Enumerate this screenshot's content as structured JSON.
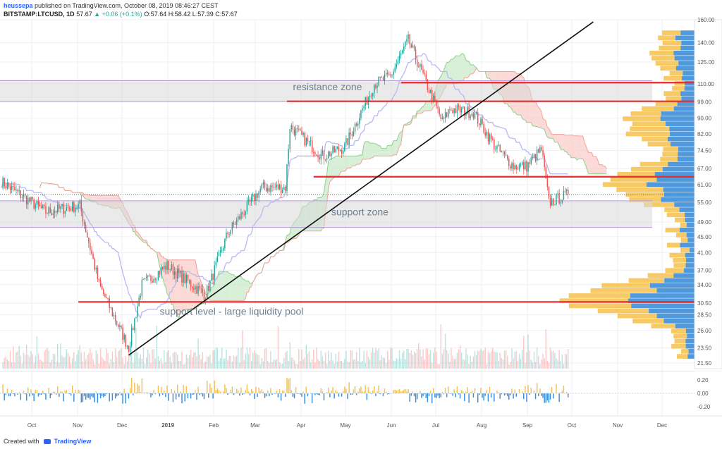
{
  "header": {
    "author": "heussepa",
    "published_text": "published on TradingView.com, October 08, 2019 08:46:27 CEST",
    "symbol": "BITSTAMP:LTCUSD, 1D",
    "last": "57.67",
    "change": "▲ +0.06 (+0.1%)",
    "ohlc": "O:57.64 H:58.42 L:57.39 C:57.67"
  },
  "footer": {
    "created_with": "Created with",
    "brand": "TradingView"
  },
  "colors": {
    "up": "#26a69a",
    "down": "#ef5350",
    "level_line": "#e52b2b",
    "resistance_zone": "#d9d9d9",
    "zone_border": "#b89ad6",
    "cloud_red": "#f9c9c4",
    "cloud_green": "#c6e8c5",
    "vp_yellow": "#f7c14a",
    "vp_blue": "#3d8ed8",
    "price_badge": "#2f9a8f"
  },
  "chart_data": {
    "type": "candlestick",
    "symbol": "BITSTAMP:LTCUSD",
    "interval": "1D",
    "y_ticks": [
      "160.00",
      "140.00",
      "125.00",
      "110.00",
      "99.00",
      "90.00",
      "82.00",
      "74.50",
      "67.00",
      "61.00",
      "55.00",
      "49.00",
      "45.00",
      "41.00",
      "37.00",
      "34.00",
      "30.50",
      "28.50",
      "26.00",
      "23.50",
      "21.50"
    ],
    "x_ticks": [
      "Oct",
      "Nov",
      "Dec",
      "2019",
      "Feb",
      "Mar",
      "Apr",
      "May",
      "Jun",
      "Jul",
      "Aug",
      "Sep",
      "Oct",
      "Nov",
      "Dec"
    ],
    "osc_ticks": [
      "0.20",
      "0.00",
      "-0.20"
    ],
    "levels": [
      {
        "value": 110.77,
        "label": "110.77",
        "start": "2019-06-17"
      },
      {
        "value": 99.32,
        "label": "99.32",
        "start": "2019-04-01"
      },
      {
        "value": 63.88,
        "label": "63.88",
        "start": "2019-04-19"
      },
      {
        "value": 30.73,
        "label": "30.73",
        "start": "2018-11-11"
      }
    ],
    "last_price": {
      "value": 57.67,
      "label": "57.67"
    },
    "zones": [
      {
        "name": "resistance zone",
        "from": 99.32,
        "to": 112
      },
      {
        "name": "support zone",
        "from": 47.5,
        "to": 55.5
      }
    ],
    "annotations": [
      {
        "text": "resistance zone",
        "date": "2019-04-05",
        "price": 106
      },
      {
        "text": "support zone",
        "date": "2019-05-01",
        "price": 51
      },
      {
        "text": "support level - large liquidity pool",
        "date": "2019-01-05",
        "price": 28.5
      }
    ],
    "trendline": {
      "from": {
        "date": "2018-12-15",
        "price": 22.5
      },
      "to": {
        "date": "2019-10-25",
        "price": 158
      }
    },
    "key_points": [
      {
        "date": "2018-09-20",
        "price": 62
      },
      {
        "date": "2018-10-20",
        "price": 52
      },
      {
        "date": "2018-11-12",
        "price": 54
      },
      {
        "date": "2018-11-25",
        "price": 34
      },
      {
        "date": "2018-12-15",
        "price": 23.5
      },
      {
        "date": "2018-12-24",
        "price": 34
      },
      {
        "date": "2019-01-10",
        "price": 38
      },
      {
        "date": "2019-02-05",
        "price": 32
      },
      {
        "date": "2019-02-20",
        "price": 46
      },
      {
        "date": "2019-03-15",
        "price": 60
      },
      {
        "date": "2019-03-31",
        "price": 60
      },
      {
        "date": "2019-04-03",
        "price": 86
      },
      {
        "date": "2019-04-25",
        "price": 72
      },
      {
        "date": "2019-05-10",
        "price": 76
      },
      {
        "date": "2019-05-30",
        "price": 110
      },
      {
        "date": "2019-06-10",
        "price": 115
      },
      {
        "date": "2019-06-22",
        "price": 142
      },
      {
        "date": "2019-07-15",
        "price": 88
      },
      {
        "date": "2019-07-20",
        "price": 95
      },
      {
        "date": "2019-08-05",
        "price": 93
      },
      {
        "date": "2019-08-20",
        "price": 76
      },
      {
        "date": "2019-09-01",
        "price": 68
      },
      {
        "date": "2019-09-10",
        "price": 68
      },
      {
        "date": "2019-09-20",
        "price": 75
      },
      {
        "date": "2019-09-25",
        "price": 55
      },
      {
        "date": "2019-10-08",
        "price": 57.67
      }
    ]
  }
}
